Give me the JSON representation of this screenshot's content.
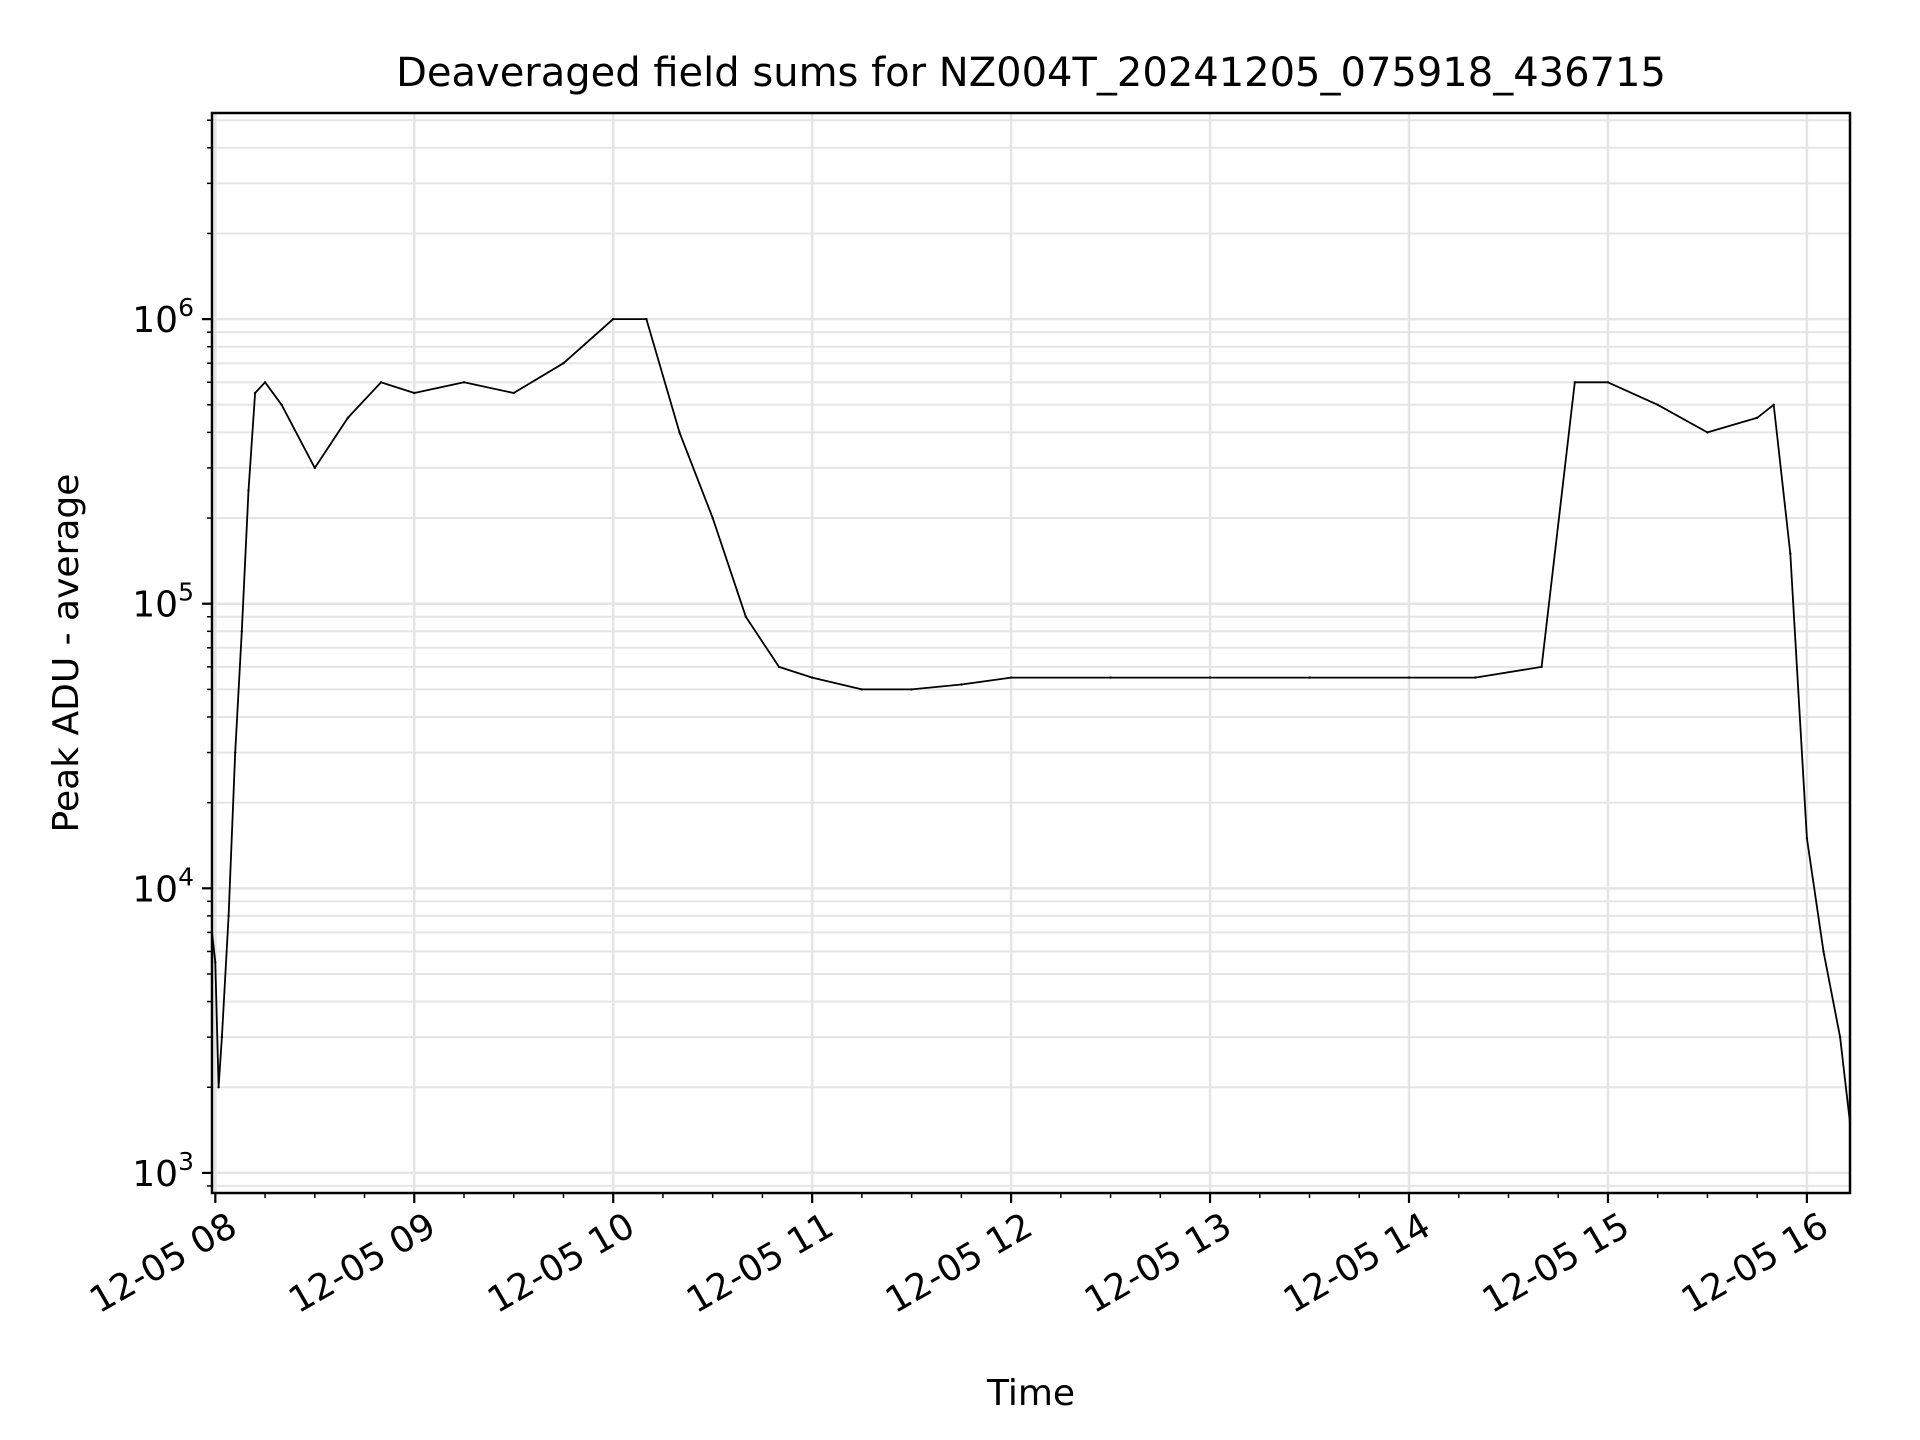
{
  "chart_data": {
    "type": "line",
    "title": "Deaveraged field sums for NZ004T_20241205_075918_436715",
    "xlabel": "Time",
    "ylabel": "Peak ADU - average",
    "x_scale": "time",
    "y_scale": "log",
    "xlim": [
      "2024-12-05 07:59",
      "2024-12-05 16:13"
    ],
    "ylim": [
      850,
      5300000
    ],
    "x_ticks": [
      "12-05 08",
      "12-05 09",
      "12-05 10",
      "12-05 11",
      "12-05 12",
      "12-05 13",
      "12-05 14",
      "12-05 15",
      "12-05 16"
    ],
    "y_ticks": [
      {
        "base": "10",
        "exp": "3"
      },
      {
        "base": "10",
        "exp": "4"
      },
      {
        "base": "10",
        "exp": "5"
      },
      {
        "base": "10",
        "exp": "6"
      }
    ],
    "grid": true,
    "line_color": "#000000",
    "grid_color": "#e5e5e5",
    "series": [
      {
        "points": [
          [
            "2024-12-05 07:59",
            7000
          ],
          [
            "2024-12-05 08:00",
            5500
          ],
          [
            "2024-12-05 08:01",
            2000
          ],
          [
            "2024-12-05 08:02",
            3000
          ],
          [
            "2024-12-05 08:04",
            8000
          ],
          [
            "2024-12-05 08:06",
            30000
          ],
          [
            "2024-12-05 08:08",
            80000
          ],
          [
            "2024-12-05 08:10",
            250000
          ],
          [
            "2024-12-05 08:12",
            550000
          ],
          [
            "2024-12-05 08:15",
            600000
          ],
          [
            "2024-12-05 08:20",
            500000
          ],
          [
            "2024-12-05 08:30",
            300000
          ],
          [
            "2024-12-05 08:40",
            450000
          ],
          [
            "2024-12-05 08:50",
            600000
          ],
          [
            "2024-12-05 09:00",
            550000
          ],
          [
            "2024-12-05 09:15",
            600000
          ],
          [
            "2024-12-05 09:30",
            550000
          ],
          [
            "2024-12-05 09:45",
            700000
          ],
          [
            "2024-12-05 10:00",
            1000000
          ],
          [
            "2024-12-05 10:10",
            1000000
          ],
          [
            "2024-12-05 10:20",
            400000
          ],
          [
            "2024-12-05 10:30",
            200000
          ],
          [
            "2024-12-05 10:40",
            90000
          ],
          [
            "2024-12-05 10:50",
            60000
          ],
          [
            "2024-12-05 11:00",
            55000
          ],
          [
            "2024-12-05 11:15",
            50000
          ],
          [
            "2024-12-05 11:30",
            50000
          ],
          [
            "2024-12-05 11:45",
            52000
          ],
          [
            "2024-12-05 12:00",
            55000
          ],
          [
            "2024-12-05 12:30",
            55000
          ],
          [
            "2024-12-05 13:00",
            55000
          ],
          [
            "2024-12-05 13:30",
            55000
          ],
          [
            "2024-12-05 14:00",
            55000
          ],
          [
            "2024-12-05 14:20",
            55000
          ],
          [
            "2024-12-05 14:40",
            60000
          ],
          [
            "2024-12-05 14:50",
            600000
          ],
          [
            "2024-12-05 15:00",
            600000
          ],
          [
            "2024-12-05 15:15",
            500000
          ],
          [
            "2024-12-05 15:30",
            400000
          ],
          [
            "2024-12-05 15:45",
            450000
          ],
          [
            "2024-12-05 15:50",
            500000
          ],
          [
            "2024-12-05 15:55",
            150000
          ],
          [
            "2024-12-05 16:00",
            15000
          ],
          [
            "2024-12-05 16:05",
            6000
          ],
          [
            "2024-12-05 16:10",
            3000
          ],
          [
            "2024-12-05 16:13",
            1500
          ]
        ]
      }
    ]
  }
}
